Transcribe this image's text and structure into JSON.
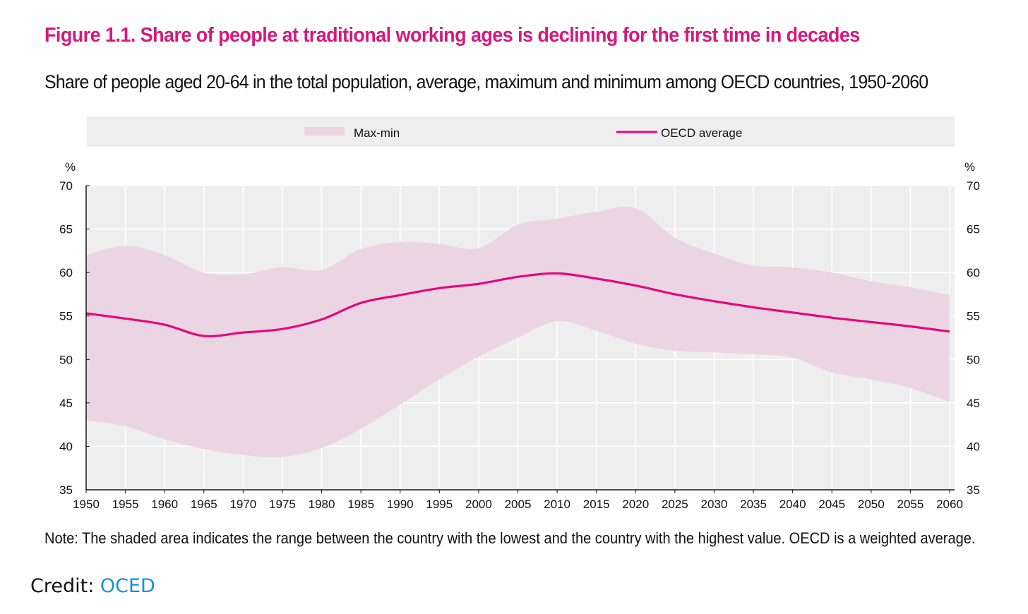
{
  "title": "Figure 1.1. Share of people at traditional working ages is declining for the first time in decades",
  "subtitle": "Share of people aged 20-64 in the total population, average, maximum and minimum among OECD countries, 1950-2060",
  "note": "Note: The shaded area indicates the range between the country with the lowest and the country with the highest value. OECD is a weighted average.",
  "credit": {
    "label": "Credit: ",
    "link": "OCED"
  },
  "colors": {
    "line": "#e5067f",
    "band": "#ecd5e2",
    "plot_bg": "#eeeeee",
    "title": "#d6187f"
  },
  "chart_data": {
    "type": "area",
    "x": [
      1950,
      1955,
      1960,
      1965,
      1970,
      1975,
      1980,
      1985,
      1990,
      1995,
      2000,
      2005,
      2010,
      2015,
      2020,
      2025,
      2030,
      2035,
      2040,
      2045,
      2050,
      2055,
      2060
    ],
    "series": [
      {
        "name": "OECD average",
        "type": "line",
        "values": [
          55.3,
          54.7,
          54.0,
          52.7,
          53.1,
          53.5,
          54.6,
          56.5,
          57.4,
          58.2,
          58.7,
          59.5,
          59.9,
          59.3,
          58.5,
          57.5,
          56.7,
          56.0,
          55.4,
          54.8,
          54.3,
          53.8,
          53.2
        ]
      },
      {
        "name": "Max-min",
        "type": "band",
        "max": [
          62.0,
          63.1,
          62.0,
          60.0,
          59.8,
          60.6,
          60.3,
          62.7,
          63.5,
          63.3,
          62.8,
          65.5,
          66.2,
          67.0,
          67.4,
          64.0,
          62.2,
          60.8,
          60.6,
          60.0,
          59.0,
          58.3,
          57.4
        ],
        "min": [
          43.0,
          42.3,
          40.8,
          39.7,
          39.0,
          38.8,
          39.8,
          42.0,
          44.8,
          47.7,
          50.3,
          52.5,
          54.4,
          53.3,
          51.8,
          51.0,
          50.8,
          50.6,
          50.2,
          48.5,
          47.7,
          46.7,
          45.1
        ]
      }
    ],
    "legend": [
      "Max-min",
      "OECD average"
    ],
    "legend_position": "top",
    "ylabel_left": "%",
    "ylabel_right": "%",
    "yticks": [
      35,
      40,
      45,
      50,
      55,
      60,
      65,
      70
    ],
    "xticks": [
      "1950",
      "1955",
      "1960",
      "1965",
      "1970",
      "1975",
      "1980",
      "1985",
      "1990",
      "1995",
      "2000",
      "2005",
      "2010",
      "2015",
      "2020",
      "2025",
      "2030",
      "2035",
      "2040",
      "2045",
      "2050",
      "2055",
      "2060"
    ],
    "ylim": [
      35,
      70
    ],
    "xlim": [
      1950,
      2060
    ],
    "grid": true
  }
}
